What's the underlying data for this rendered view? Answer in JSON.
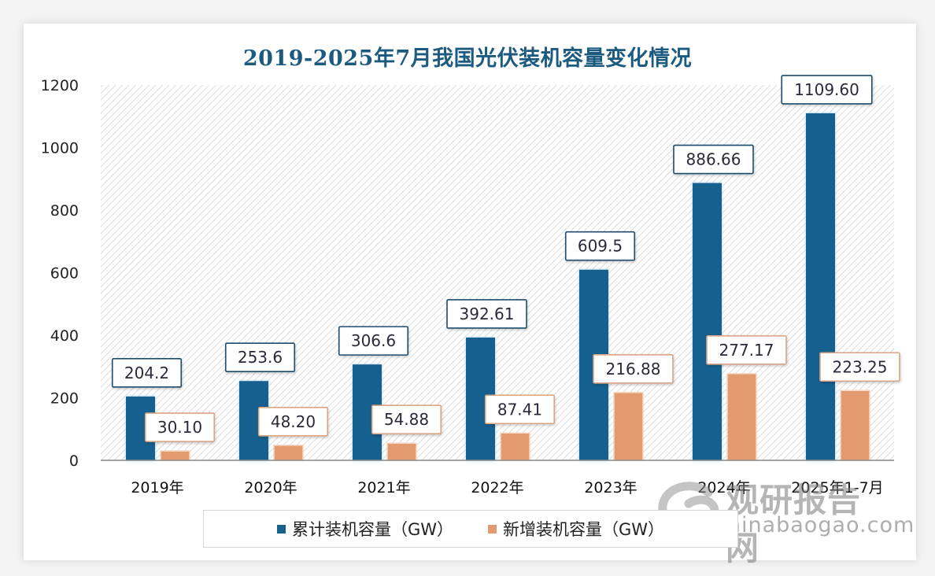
{
  "chart_data": {
    "type": "bar",
    "title": "2019-2025年7月我国光伏装机容量变化情况",
    "xlabel": "",
    "ylabel": "",
    "ylim": [
      0,
      1200
    ],
    "yticks": [
      0,
      200,
      400,
      600,
      800,
      1000,
      1200
    ],
    "grid": false,
    "legend_position": "bottom",
    "categories": [
      "2019年",
      "2020年",
      "2021年",
      "2022年",
      "2023年",
      "2024年",
      "2025年1-7月"
    ],
    "series": [
      {
        "name": "累计装机容量（GW）",
        "color": "#17618f",
        "values": [
          204.2,
          253.6,
          306.6,
          392.61,
          609.5,
          886.66,
          1109.6
        ],
        "labels": [
          "204.2",
          "253.6",
          "306.6",
          "392.61",
          "609.5",
          "886.66",
          "1109.60"
        ]
      },
      {
        "name": "新增装机容量（GW）",
        "color": "#e39a6f",
        "values": [
          30.1,
          48.2,
          54.88,
          87.41,
          216.88,
          277.17,
          223.25
        ],
        "labels": [
          "30.10",
          "48.20",
          "54.88",
          "87.41",
          "216.88",
          "277.17",
          "223.25"
        ]
      }
    ]
  },
  "watermark": {
    "cn": "观研报告网",
    "en": "chinabaogao.com"
  }
}
